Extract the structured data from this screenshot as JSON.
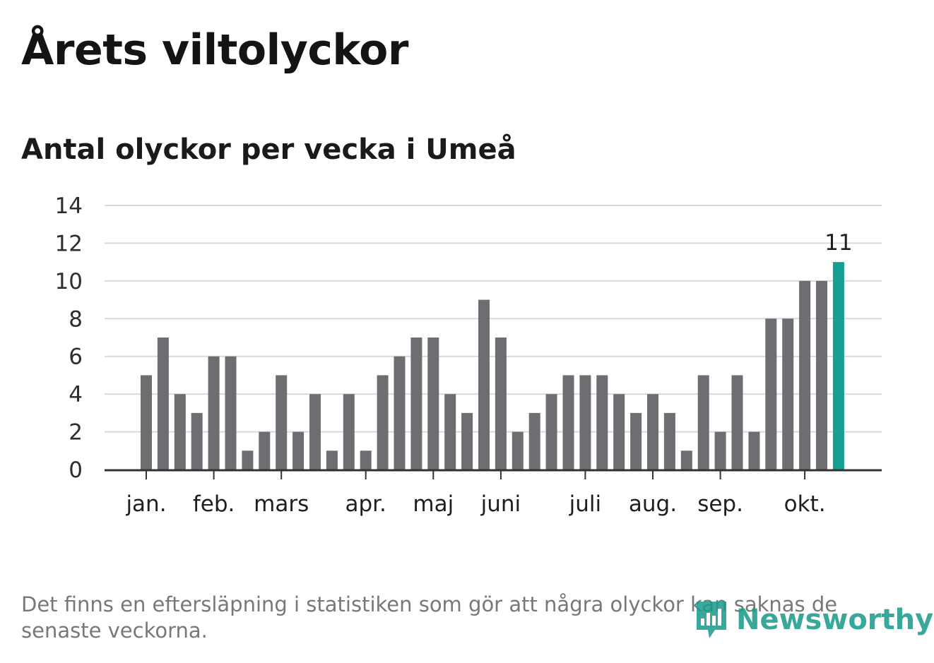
{
  "header": {
    "title": "Årets viltolyckor",
    "subtitle": "Antal olyckor per vecka i Umeå"
  },
  "footnote": "Det finns en eftersläpning i statistiken som gör att några olyckor kan saknas de senaste veckorna.",
  "logo": {
    "text": "Newsworthy",
    "color": "#169a8a"
  },
  "colors": {
    "bar": "#6e6d72",
    "highlight": "#16a094",
    "grid": "#d9d9d9",
    "axis": "#333333"
  },
  "chart_data": {
    "type": "bar",
    "title": "Årets viltolyckor",
    "subtitle": "Antal olyckor per vecka i Umeå",
    "xlabel": "",
    "ylabel": "",
    "ylim": [
      0,
      14
    ],
    "yticks": [
      0,
      2,
      4,
      6,
      8,
      10,
      12,
      14
    ],
    "grid": true,
    "weeks": [
      1,
      2,
      3,
      4,
      5,
      6,
      7,
      8,
      9,
      10,
      11,
      12,
      13,
      14,
      15,
      16,
      17,
      18,
      19,
      20,
      21,
      22,
      23,
      24,
      25,
      26,
      27,
      28,
      29,
      30,
      31,
      32,
      33,
      34,
      35,
      36,
      37,
      38,
      39,
      40,
      41,
      42
    ],
    "values": [
      5,
      7,
      4,
      3,
      6,
      6,
      1,
      2,
      5,
      2,
      4,
      1,
      4,
      1,
      5,
      6,
      7,
      7,
      4,
      3,
      9,
      7,
      2,
      3,
      4,
      5,
      5,
      5,
      4,
      3,
      4,
      3,
      1,
      5,
      2,
      5,
      2,
      8,
      8,
      10,
      10,
      11
    ],
    "highlight_last": true,
    "last_value_label": "11",
    "month_labels": [
      {
        "label": "jan.",
        "week": 1
      },
      {
        "label": "feb.",
        "week": 5
      },
      {
        "label": "mars",
        "week": 9
      },
      {
        "label": "apr.",
        "week": 14
      },
      {
        "label": "maj",
        "week": 18
      },
      {
        "label": "juni",
        "week": 22
      },
      {
        "label": "juli",
        "week": 27
      },
      {
        "label": "aug.",
        "week": 31
      },
      {
        "label": "sep.",
        "week": 35
      },
      {
        "label": "okt.",
        "week": 40
      }
    ]
  }
}
